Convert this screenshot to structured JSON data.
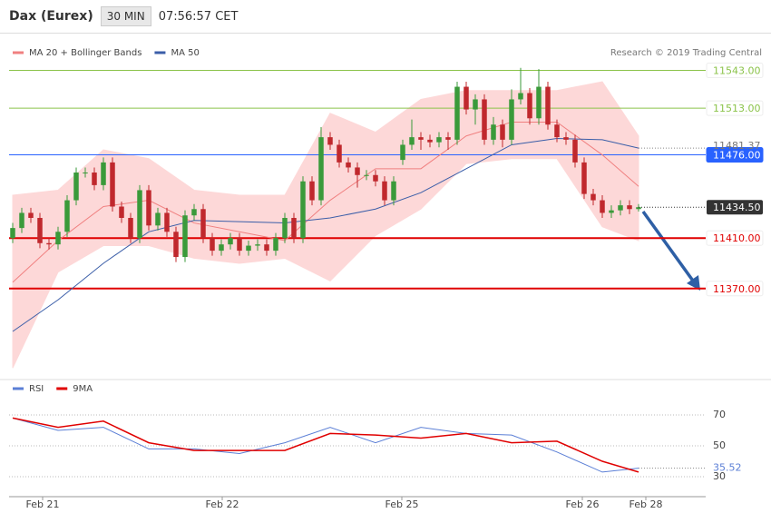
{
  "header": {
    "title": "Dax (Eurex)",
    "timeframe": "30 MIN",
    "time": "07:56:57 CET"
  },
  "chart_data": [
    {
      "type": "candlestick",
      "source": "Research © 2019 Trading Central",
      "x": [
        0,
        1,
        2,
        3,
        4,
        5,
        6,
        7,
        8,
        9,
        10,
        11,
        12,
        13,
        14,
        15,
        16,
        17,
        18,
        19,
        20,
        21,
        22,
        23,
        24,
        25,
        26,
        27,
        28,
        29,
        30,
        31,
        32,
        33,
        34,
        35,
        36,
        37,
        38,
        39,
        40,
        41,
        42,
        43,
        44,
        45,
        46,
        47,
        48,
        49,
        50,
        51,
        52,
        53,
        54,
        55,
        56,
        57,
        58,
        59,
        60,
        61,
        62,
        63,
        64,
        65,
        66,
        67,
        68,
        69
      ],
      "open": [
        11410,
        11418,
        11430,
        11426,
        11406,
        11405,
        11415,
        11440,
        11462,
        11462,
        11452,
        11470,
        11435,
        11426,
        11410,
        11448,
        11420,
        11430,
        11415,
        11395,
        11428,
        11433,
        11410,
        11400,
        11405,
        11410,
        11400,
        11404,
        11405,
        11400,
        11410,
        11426,
        11410,
        11455,
        11440,
        11490,
        11484,
        11470,
        11466,
        11460,
        11460,
        11455,
        11440,
        11472,
        11484,
        11490,
        11488,
        11486,
        11490,
        11488,
        11530,
        11512,
        11520,
        11488,
        11500,
        11488,
        11520,
        11525,
        11505,
        11530,
        11500,
        11490,
        11488,
        11470,
        11445,
        11440,
        11430,
        11432,
        11436,
        11433
      ],
      "high": [
        11422,
        11434,
        11434,
        11430,
        11410,
        11419,
        11444,
        11466,
        11466,
        11466,
        11474,
        11474,
        11439,
        11430,
        11452,
        11452,
        11434,
        11434,
        11419,
        11432,
        11437,
        11437,
        11414,
        11409,
        11414,
        11414,
        11408,
        11409,
        11409,
        11414,
        11430,
        11430,
        11459,
        11459,
        11498,
        11494,
        11488,
        11474,
        11470,
        11464,
        11464,
        11459,
        11459,
        11488,
        11504,
        11494,
        11492,
        11494,
        11494,
        11534,
        11534,
        11524,
        11524,
        11506,
        11504,
        11528,
        11545,
        11529,
        11544,
        11534,
        11504,
        11494,
        11492,
        11474,
        11449,
        11444,
        11436,
        11440,
        11440,
        11437
      ],
      "low": [
        11406,
        11414,
        11422,
        11402,
        11401,
        11401,
        11411,
        11436,
        11458,
        11448,
        11448,
        11431,
        11422,
        11406,
        11406,
        11416,
        11416,
        11411,
        11391,
        11391,
        11424,
        11406,
        11396,
        11396,
        11401,
        11396,
        11396,
        11400,
        11396,
        11396,
        11406,
        11406,
        11406,
        11436,
        11436,
        11480,
        11466,
        11462,
        11450,
        11456,
        11451,
        11436,
        11436,
        11468,
        11480,
        11480,
        11482,
        11482,
        11480,
        11484,
        11508,
        11500,
        11484,
        11484,
        11482,
        11484,
        11516,
        11500,
        11500,
        11496,
        11486,
        11484,
        11466,
        11441,
        11436,
        11426,
        11426,
        11428,
        11429,
        11431
      ],
      "close": [
        11418,
        11430,
        11426,
        11406,
        11405,
        11415,
        11440,
        11462,
        11462,
        11452,
        11470,
        11435,
        11426,
        11410,
        11448,
        11420,
        11430,
        11415,
        11395,
        11428,
        11433,
        11410,
        11400,
        11405,
        11410,
        11400,
        11404,
        11405,
        11400,
        11410,
        11426,
        11410,
        11455,
        11440,
        11490,
        11484,
        11470,
        11466,
        11460,
        11460,
        11455,
        11440,
        11455,
        11484,
        11490,
        11488,
        11486,
        11490,
        11488,
        11530,
        11512,
        11520,
        11488,
        11500,
        11488,
        11520,
        11525,
        11505,
        11530,
        11500,
        11490,
        11488,
        11470,
        11445,
        11440,
        11430,
        11432,
        11436,
        11433,
        11434.5
      ],
      "up_color": "#3a9a3a",
      "down_color": "#c0282d",
      "series": [
        {
          "name": "MA 20 + Bollinger Bands",
          "color": "#f08080",
          "band_color": "#fdd8d8",
          "x": [
            0,
            5,
            10,
            15,
            20,
            25,
            30,
            35,
            40,
            45,
            50,
            55,
            60,
            65,
            69
          ],
          "values": [
            11375,
            11408,
            11435,
            11440,
            11422,
            11415,
            11408,
            11440,
            11465,
            11465,
            11491,
            11502,
            11502,
            11476,
            11451
          ],
          "upper": [
            11444,
            11448,
            11480,
            11473,
            11448,
            11444,
            11444,
            11509,
            11494,
            11520,
            11527,
            11527,
            11527,
            11534,
            11491
          ],
          "lower": [
            11307,
            11383,
            11404,
            11404,
            11394,
            11390,
            11394,
            11376,
            11412,
            11433,
            11469,
            11473,
            11473,
            11419,
            11408
          ]
        },
        {
          "name": "MA 50",
          "color": "#3b5ea8",
          "x": [
            0,
            5,
            10,
            15,
            20,
            25,
            30,
            35,
            40,
            45,
            50,
            55,
            60,
            65,
            69
          ],
          "values": [
            11336,
            11361,
            11390,
            11415,
            11424,
            11423,
            11422,
            11426,
            11433,
            11446,
            11465,
            11484,
            11489,
            11488,
            11481.37
          ]
        }
      ],
      "levels": [
        {
          "value": 11543,
          "label": "11543.00",
          "color": "#8bc34a",
          "label_style": "outline"
        },
        {
          "value": 11513,
          "label": "11513.00",
          "color": "#8bc34a",
          "label_style": "outline"
        },
        {
          "value": 11476,
          "label": "11476.00",
          "color": "#2962ff",
          "label_style": "filled"
        },
        {
          "value": 11410,
          "label": "11410.00",
          "color": "#e00000",
          "label_style": "outline"
        },
        {
          "value": 11370,
          "label": "11370.00",
          "color": "#e00000",
          "label_style": "outline"
        }
      ],
      "last_price": {
        "value": 11434.5,
        "label": "11434.50",
        "color": "#333333"
      },
      "xlim": [
        -0.4,
        76.4
      ],
      "ylim": [
        11300,
        11570
      ]
    },
    {
      "type": "line",
      "series": [
        {
          "name": "RSI",
          "color": "#5b7fd6",
          "x": [
            0,
            5,
            10,
            15,
            20,
            25,
            30,
            35,
            40,
            45,
            50,
            55,
            60,
            65,
            69
          ],
          "values": [
            68,
            60,
            62,
            48,
            48,
            45,
            52,
            62,
            52,
            62,
            58,
            57,
            46,
            33,
            35.52
          ]
        },
        {
          "name": "9MA",
          "color": "#e00000",
          "x": [
            0,
            5,
            10,
            15,
            20,
            25,
            30,
            35,
            40,
            45,
            50,
            55,
            60,
            65,
            69
          ],
          "values": [
            68,
            62,
            66,
            52,
            47,
            47,
            47,
            58,
            57,
            55,
            58,
            52,
            53,
            40,
            33
          ]
        }
      ],
      "xlim": [
        -0.4,
        76.4
      ],
      "ylim": [
        20,
        80
      ],
      "yticks": [
        70,
        50,
        30
      ],
      "grid": true,
      "xticks": [
        {
          "value": 3.3,
          "label": "Feb 21"
        },
        {
          "value": 23.1,
          "label": "Feb 22"
        },
        {
          "value": 42.9,
          "label": "Feb 25"
        },
        {
          "value": 62.8,
          "label": "Feb 26"
        },
        {
          "value": 69.8,
          "label": "Feb 28"
        }
      ]
    }
  ]
}
